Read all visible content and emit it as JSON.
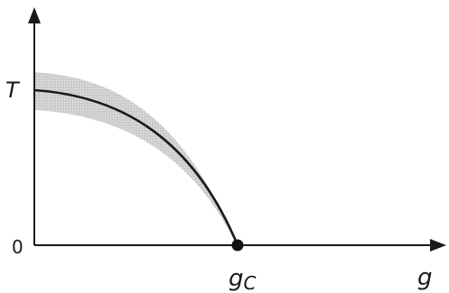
{
  "diagram": {
    "labels": {
      "y_axis_tick": "T",
      "origin": "0",
      "critical_point": "g",
      "critical_point_sub": "C",
      "x_axis": "g"
    },
    "colors": {
      "axes": "#1a1a1a",
      "curve": "#1a1a1a",
      "band": "#c8c8c8",
      "point": "#111111"
    }
  }
}
